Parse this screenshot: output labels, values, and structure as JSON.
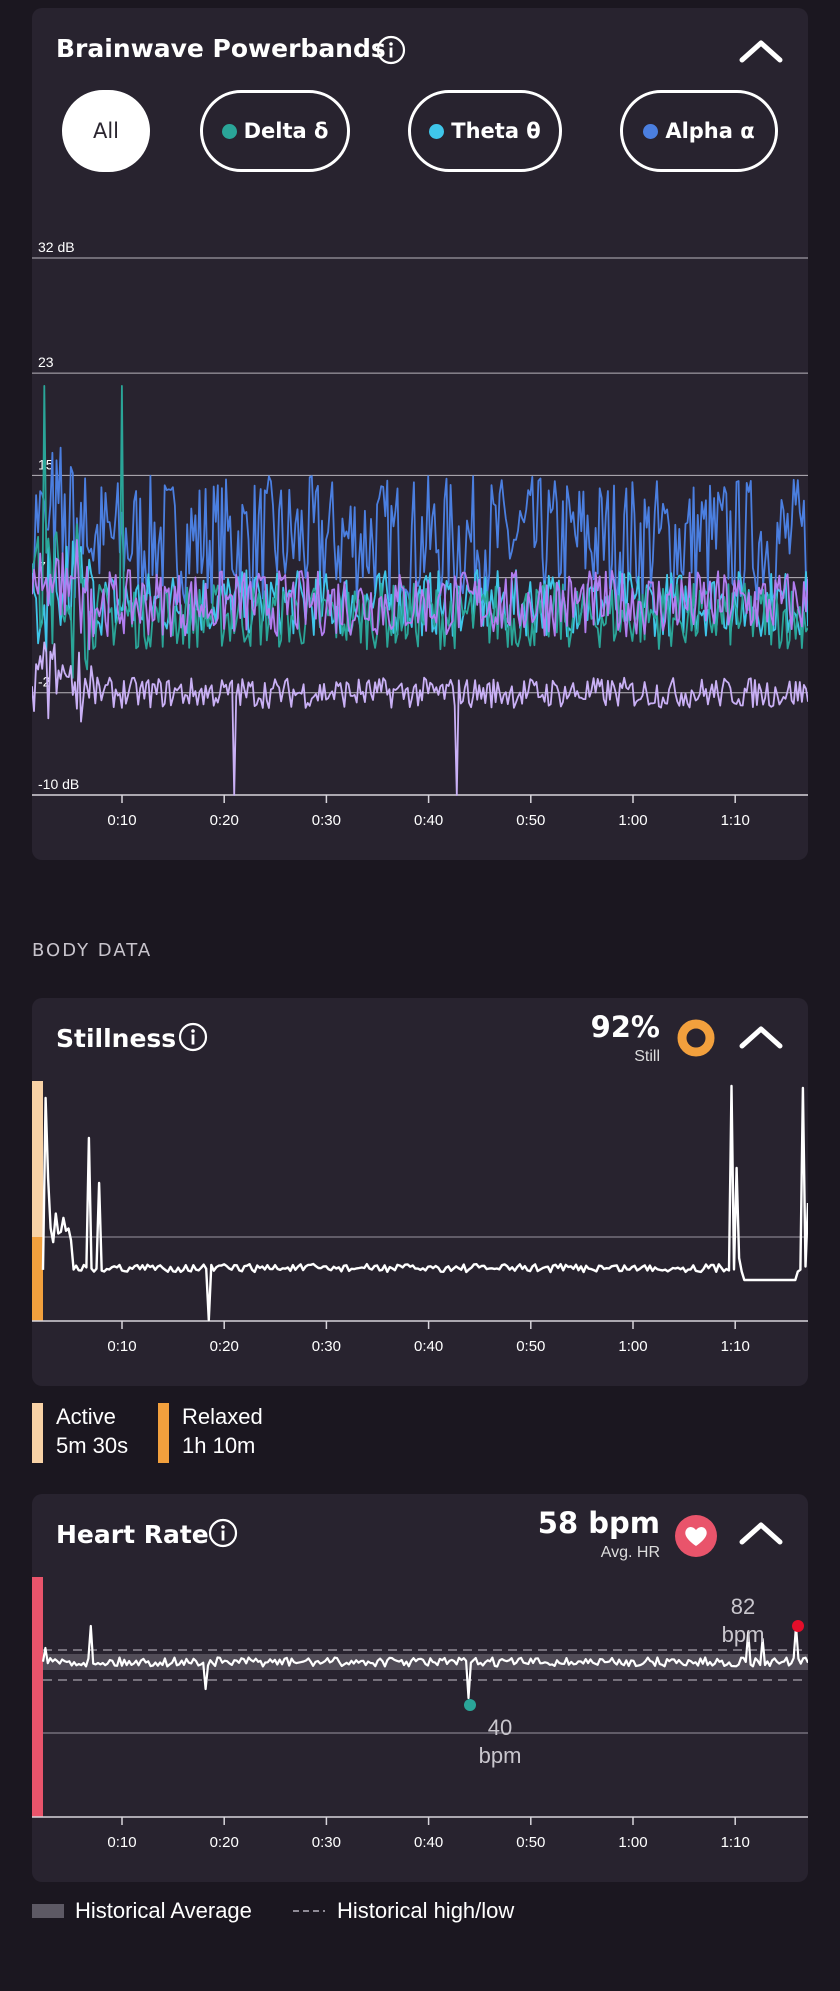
{
  "brainwave": {
    "title": "Brainwave Powerbands",
    "filters": [
      {
        "label": "All",
        "active": true,
        "color": ""
      },
      {
        "label": "Delta δ",
        "active": false,
        "color": "#2aa598"
      },
      {
        "label": "Theta θ",
        "active": false,
        "color": "#3fc6ea"
      },
      {
        "label": "Alpha α",
        "active": false,
        "color": "#4b7fe0"
      }
    ],
    "y_ticks": [
      "32 dB",
      "23",
      "15",
      "7",
      "-2",
      "-10 dB"
    ],
    "x_ticks": [
      "0:10",
      "0:20",
      "0:30",
      "0:40",
      "0:50",
      "1:00",
      "1:10"
    ]
  },
  "body_section_label": "BODY DATA",
  "stillness": {
    "title": "Stillness",
    "percent": "92%",
    "percent_caption": "Still",
    "ring_color": "#f2a03d",
    "x_ticks": [
      "0:10",
      "0:20",
      "0:30",
      "0:40",
      "0:50",
      "1:00",
      "1:10"
    ],
    "legend": [
      {
        "label": "Active",
        "value": "5m 30s",
        "color": "#f8d2a6"
      },
      {
        "label": "Relaxed",
        "value": "1h 10m",
        "color": "#f2a03d"
      }
    ]
  },
  "heart_rate": {
    "title": "Heart Rate",
    "avg": "58 bpm",
    "avg_caption": "Avg. HR",
    "heart_color": "#e9546b",
    "max_label": [
      "82",
      "bpm"
    ],
    "min_label": [
      "40",
      "bpm"
    ],
    "x_ticks": [
      "0:10",
      "0:20",
      "0:30",
      "0:40",
      "0:50",
      "1:00",
      "1:10"
    ],
    "legend": [
      "Historical Average",
      "Historical high/low"
    ]
  },
  "chart_data": [
    {
      "type": "line",
      "title": "Brainwave Powerbands",
      "ylabel": "dB",
      "ylim": [
        -10,
        32
      ],
      "y_ticks": [
        32,
        23,
        15,
        7,
        -2,
        -10
      ],
      "x_ticks": [
        "0:10",
        "0:20",
        "0:30",
        "0:40",
        "0:50",
        "1:00",
        "1:10"
      ],
      "series": [
        {
          "name": "Alpha α",
          "color": "#4b7fe0",
          "approx_level_db": 10
        },
        {
          "name": "Theta θ",
          "color": "#3fc6ea",
          "approx_level_db": 5
        },
        {
          "name": "Delta δ",
          "color": "#2aa598",
          "approx_level_db": 4
        },
        {
          "name": "",
          "color": "#b27df0",
          "approx_level_db": 5
        },
        {
          "name": "",
          "color": "#c9b0f5",
          "approx_level_db": -2
        }
      ]
    },
    {
      "type": "line",
      "title": "Stillness",
      "x_ticks": [
        "0:10",
        "0:20",
        "0:30",
        "0:40",
        "0:50",
        "1:00",
        "1:10"
      ]
    },
    {
      "type": "line",
      "title": "Heart Rate",
      "x_ticks": [
        "0:10",
        "0:20",
        "0:30",
        "0:40",
        "0:50",
        "1:00",
        "1:10"
      ],
      "max_bpm": 82,
      "min_bpm": 40,
      "avg_bpm": 58
    }
  ]
}
